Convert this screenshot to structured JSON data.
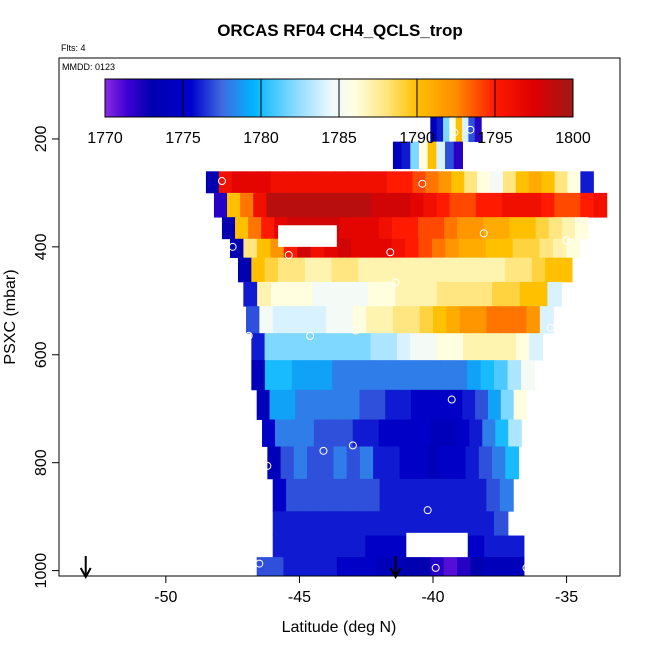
{
  "chart_data": {
    "type": "heatmap",
    "title": "ORCAS RF04 CH4_QCLS_trop",
    "subtitle_flights": "Flts: 4",
    "subtitle_date": "MMDD: 0123",
    "xlabel": "Latitude (deg N)",
    "ylabel": "PSXC (mbar)",
    "xlim": [
      -54.0,
      -33.0
    ],
    "ylim": [
      1010,
      50
    ],
    "x_ticks": [
      -50,
      -45,
      -40,
      -35
    ],
    "x_tick_labels": [
      "-50",
      "-45",
      "-40",
      "-35"
    ],
    "y_ticks": [
      200,
      400,
      600,
      800,
      1000
    ],
    "y_tick_labels": [
      "200",
      "400",
      "600",
      "800",
      "1000"
    ],
    "colorbar": {
      "min": 1770,
      "max": 1800,
      "ticks": [
        1770,
        1775,
        1780,
        1785,
        1790,
        1795,
        1800
      ],
      "tick_labels": [
        "1770",
        "1775",
        "1780",
        "1785",
        "1790",
        "1795",
        "1800"
      ],
      "stops": [
        {
          "v": 1770,
          "c": "#8a2be2"
        },
        {
          "v": 1771.5,
          "c": "#3a00d0"
        },
        {
          "v": 1773,
          "c": "#0000b0"
        },
        {
          "v": 1775.5,
          "c": "#0000cc"
        },
        {
          "v": 1777.5,
          "c": "#3f6ae0"
        },
        {
          "v": 1779.5,
          "c": "#00b4ff"
        },
        {
          "v": 1782,
          "c": "#7fd8ff"
        },
        {
          "v": 1784.5,
          "c": "#eef8ff"
        },
        {
          "v": 1786,
          "c": "#ffffe0"
        },
        {
          "v": 1788,
          "c": "#ffe680"
        },
        {
          "v": 1790,
          "c": "#ffc000"
        },
        {
          "v": 1792.5,
          "c": "#ff8c00"
        },
        {
          "v": 1795,
          "c": "#ff1a00"
        },
        {
          "v": 1797.5,
          "c": "#dd0000"
        },
        {
          "v": 1800,
          "c": "#a01818"
        }
      ]
    },
    "layers": [
      {
        "p_top": 160,
        "p_bot": 205,
        "x_start": -40.1,
        "x_end": -38.2,
        "v": [
          1774,
          1776,
          1782,
          1786,
          1790,
          1784,
          1777,
          1772
        ]
      },
      {
        "p_top": 205,
        "p_bot": 255,
        "x_start": -41.5,
        "x_end": -38.9,
        "v": [
          1774,
          1776,
          1782,
          1786,
          1790,
          1784,
          1777,
          1772
        ]
      },
      {
        "p_top": 260,
        "p_bot": 300,
        "x_start": -48.5,
        "x_end": -34.0,
        "v": [
          1773,
          1796,
          1797,
          1797,
          1797,
          1796,
          1796,
          1796,
          1796,
          1796,
          1796,
          1796,
          1796,
          1796,
          1795,
          1795,
          1794,
          1793,
          1792,
          1790,
          1788,
          1786,
          1785,
          1788,
          1790,
          1791,
          1790,
          1788,
          1786,
          1776
        ]
      },
      {
        "p_top": 300,
        "p_bot": 345,
        "x_start": -48.2,
        "x_end": -33.5,
        "v": [
          1772,
          1790,
          1793,
          1796,
          1799,
          1799,
          1799,
          1799,
          1799,
          1799,
          1799,
          1799,
          1798,
          1798,
          1798,
          1797,
          1796,
          1795,
          1794,
          1794,
          1795,
          1795,
          1796,
          1796,
          1796,
          1795,
          1794,
          1794,
          1795,
          1796
        ]
      },
      {
        "p_top": 345,
        "p_bot": 385,
        "x_start": -47.9,
        "x_end": -34.2,
        "v": [
          1773,
          1790,
          1793,
          1795,
          1797,
          1798,
          1798,
          1798,
          1798,
          1797,
          1797,
          1797,
          1796,
          1795,
          1795,
          1794,
          1794,
          1793,
          1792,
          1792,
          1791,
          1791,
          1790,
          1790,
          1789,
          1788,
          1787,
          1786
        ]
      },
      {
        "p_top": 385,
        "p_bot": 420,
        "x_start": -47.6,
        "x_end": -34.5,
        "v": [
          1773,
          1788,
          1790,
          1792,
          1795,
          1798,
          1796,
          1797,
          1798,
          1797,
          1797,
          1797,
          1796,
          1795,
          1794,
          1793,
          1792,
          1791,
          1791,
          1790,
          1790,
          1789,
          1789,
          1788,
          1787,
          1786
        ]
      },
      {
        "p_top": 420,
        "p_bot": 465,
        "x_start": -47.3,
        "x_end": -34.8,
        "v": [
          1773,
          1790,
          1789,
          1788,
          1788,
          1787,
          1787,
          1788,
          1788,
          1787,
          1787,
          1787,
          1787,
          1787,
          1787,
          1787,
          1787,
          1787,
          1787,
          1787,
          1788,
          1788,
          1789,
          1790,
          1790
        ]
      },
      {
        "p_top": 465,
        "p_bot": 510,
        "x_start": -47.1,
        "x_end": -35.2,
        "v": [
          1776,
          1787,
          1786,
          1786,
          1786,
          1785,
          1785,
          1785,
          1785,
          1786,
          1786,
          1787,
          1787,
          1787,
          1788,
          1788,
          1788,
          1788,
          1789,
          1789,
          1790,
          1790,
          1784
        ]
      },
      {
        "p_top": 510,
        "p_bot": 560,
        "x_start": -47.0,
        "x_end": -35.5,
        "v": [
          1777,
          1785,
          1784,
          1784,
          1784,
          1784,
          1785,
          1785,
          1786,
          1787,
          1787,
          1788,
          1788,
          1789,
          1790,
          1791,
          1792,
          1792,
          1793,
          1793,
          1793,
          1792,
          1784
        ]
      },
      {
        "p_top": 560,
        "p_bot": 610,
        "x_start": -46.8,
        "x_end": -35.9,
        "v": [
          1776,
          1782,
          1782,
          1782,
          1782,
          1782,
          1782,
          1782,
          1782,
          1783,
          1783,
          1784,
          1785,
          1785,
          1786,
          1786,
          1787,
          1787,
          1787,
          1787,
          1786,
          1784
        ]
      },
      {
        "p_top": 610,
        "p_bot": 665,
        "x_start": -46.8,
        "x_end": -36.2,
        "v": [
          1774,
          1780,
          1780,
          1779,
          1779,
          1779,
          1778,
          1778,
          1778,
          1778,
          1778,
          1778,
          1778,
          1778,
          1778,
          1778,
          1779,
          1780,
          1781,
          1783,
          1785
        ]
      },
      {
        "p_top": 665,
        "p_bot": 720,
        "x_start": -46.6,
        "x_end": -36.5,
        "v": [
          1774,
          1779,
          1779,
          1778,
          1778,
          1778,
          1778,
          1778,
          1777,
          1777,
          1776,
          1776,
          1775,
          1775,
          1775,
          1775,
          1776,
          1777,
          1779,
          1782,
          1786
        ]
      },
      {
        "p_top": 720,
        "p_bot": 770,
        "x_start": -46.4,
        "x_end": -36.7,
        "v": [
          1775,
          1778,
          1778,
          1778,
          1777,
          1777,
          1777,
          1776,
          1776,
          1775,
          1775,
          1775,
          1775,
          1774,
          1774,
          1775,
          1776,
          1778,
          1780,
          1783
        ]
      },
      {
        "p_top": 770,
        "p_bot": 830,
        "x_start": -46.2,
        "x_end": -36.8,
        "v": [
          1774,
          1777,
          1778,
          1777,
          1777,
          1778,
          1777,
          1778,
          1776,
          1776,
          1775,
          1775,
          1774,
          1775,
          1775,
          1776,
          1777,
          1778,
          1780
        ]
      },
      {
        "p_top": 830,
        "p_bot": 890,
        "x_start": -46.0,
        "x_end": -37.0,
        "v": [
          1775,
          1777,
          1777,
          1777,
          1777,
          1777,
          1777,
          1777,
          1776,
          1776,
          1776,
          1776,
          1776,
          1776,
          1776,
          1776,
          1777,
          1778
        ]
      },
      {
        "p_top": 890,
        "p_bot": 935,
        "x_start": -46.0,
        "x_end": -37.2,
        "v": [
          1776,
          1776,
          1776,
          1776,
          1776,
          1776,
          1776,
          1776,
          1776,
          1776,
          1776,
          1776,
          1776,
          1776,
          1776,
          1776,
          1777
        ]
      },
      {
        "p_top": 935,
        "p_bot": 975,
        "x_start": -46.0,
        "x_end": -36.6,
        "v": [
          1776,
          1776,
          1776,
          1776,
          1776,
          1776,
          1776,
          1775,
          1775,
          1775,
          1775,
          1774,
          1775,
          1775,
          1775,
          1775,
          1776,
          1776,
          1776
        ]
      },
      {
        "p_top": 975,
        "p_bot": 1010,
        "x_start": -46.6,
        "x_end": -36.6,
        "v": [
          1777,
          1777,
          1776,
          1776,
          1776,
          1776,
          1775,
          1775,
          1775,
          1774,
          1774,
          1773,
          1773,
          1772,
          1771,
          1772,
          1773,
          1774,
          1774,
          1774
        ]
      }
    ],
    "gaps": [
      {
        "p_top": 360,
        "p_bot": 400,
        "x_start": -45.8,
        "x_end": -43.6
      },
      {
        "p_top": 930,
        "p_bot": 975,
        "x_start": -41.0,
        "x_end": -38.7
      }
    ],
    "points": [
      {
        "lat": -39.2,
        "p": 188
      },
      {
        "lat": -38.6,
        "p": 183
      },
      {
        "lat": -47.9,
        "p": 278
      },
      {
        "lat": -40.4,
        "p": 283
      },
      {
        "lat": -38.1,
        "p": 375
      },
      {
        "lat": -35.0,
        "p": 388
      },
      {
        "lat": -47.5,
        "p": 400
      },
      {
        "lat": -45.4,
        "p": 415
      },
      {
        "lat": -41.6,
        "p": 410
      },
      {
        "lat": -41.4,
        "p": 466
      },
      {
        "lat": -46.9,
        "p": 565
      },
      {
        "lat": -44.6,
        "p": 565
      },
      {
        "lat": -42.9,
        "p": 555
      },
      {
        "lat": -35.6,
        "p": 550
      },
      {
        "lat": -39.3,
        "p": 683
      },
      {
        "lat": -43.0,
        "p": 768
      },
      {
        "lat": -44.1,
        "p": 778
      },
      {
        "lat": -46.2,
        "p": 806
      },
      {
        "lat": -40.2,
        "p": 888
      },
      {
        "lat": -36.6,
        "p": 925
      },
      {
        "lat": -46.5,
        "p": 987
      },
      {
        "lat": -39.9,
        "p": 995
      },
      {
        "lat": -36.5,
        "p": 995
      }
    ],
    "flight_markers": [
      -53.0,
      -41.4
    ]
  }
}
